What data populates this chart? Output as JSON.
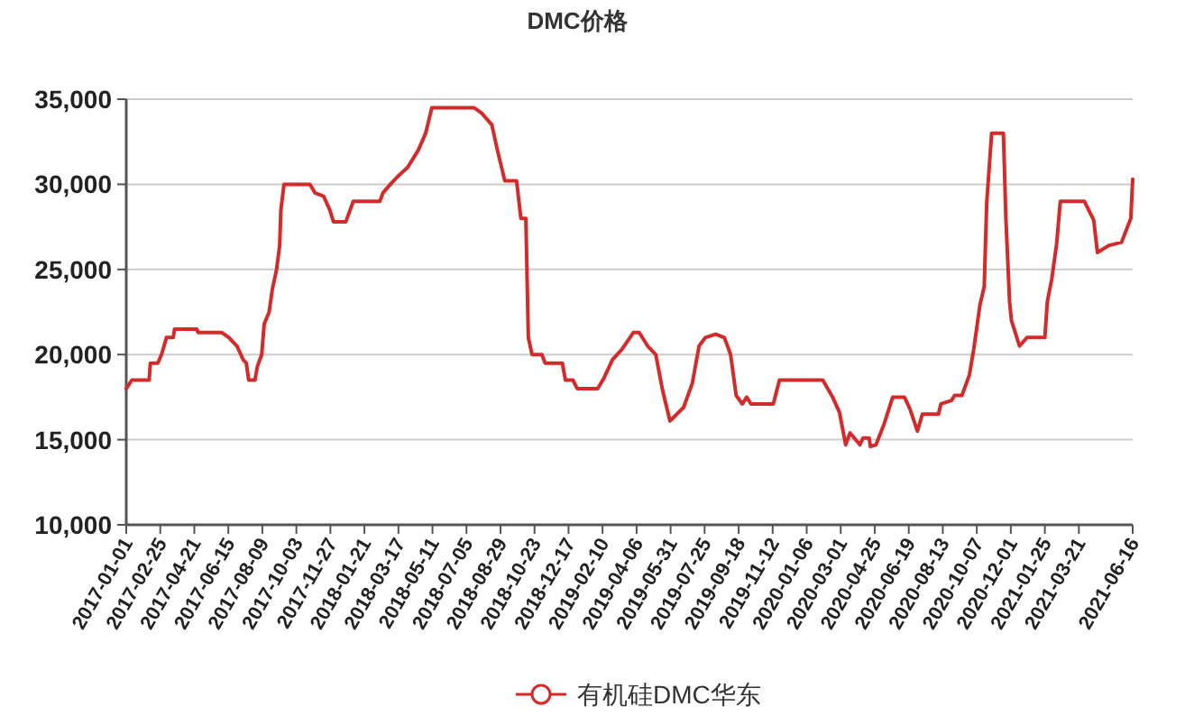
{
  "chart_data": {
    "type": "line",
    "title": "DMC价格",
    "x": [
      "2017-01-01",
      "2017-01-10",
      "2017-02-07",
      "2017-02-09",
      "2017-02-21",
      "2017-02-27",
      "2017-03-07",
      "2017-03-18",
      "2017-03-20",
      "2017-04-25",
      "2017-04-27",
      "2017-06-04",
      "2017-06-16",
      "2017-06-29",
      "2017-07-09",
      "2017-07-14",
      "2017-07-18",
      "2017-07-28",
      "2017-08-01",
      "2017-08-08",
      "2017-08-12",
      "2017-08-20",
      "2017-08-25",
      "2017-09-01",
      "2017-09-06",
      "2017-09-08",
      "2017-09-13",
      "2017-10-25",
      "2017-11-02",
      "2017-11-16",
      "2017-11-26",
      "2017-12-02",
      "2017-12-22",
      "2018-01-03",
      "2018-02-15",
      "2018-02-20",
      "2018-03-04",
      "2018-03-17",
      "2018-04-01",
      "2018-04-18",
      "2018-04-30",
      "2018-05-10",
      "2018-07-17",
      "2018-07-29",
      "2018-08-15",
      "2018-08-24",
      "2018-09-05",
      "2018-09-24",
      "2018-10-01",
      "2018-10-09",
      "2018-10-13",
      "2018-10-19",
      "2018-11-04",
      "2018-11-09",
      "2018-12-07",
      "2018-12-12",
      "2018-12-24",
      "2018-12-31",
      "2019-02-02",
      "2019-02-12",
      "2019-02-26",
      "2019-03-13",
      "2019-04-01",
      "2019-04-10",
      "2019-04-24",
      "2019-05-07",
      "2019-05-18",
      "2019-05-30",
      "2019-06-21",
      "2019-07-05",
      "2019-07-16",
      "2019-07-26",
      "2019-08-12",
      "2019-08-26",
      "2019-09-05",
      "2019-09-14",
      "2019-09-24",
      "2019-10-01",
      "2019-10-08",
      "2019-11-13",
      "2019-11-23",
      "2020-02-01",
      "2020-02-17",
      "2020-02-28",
      "2020-03-09",
      "2020-03-16",
      "2020-04-01",
      "2020-04-06",
      "2020-04-16",
      "2020-04-18",
      "2020-04-27",
      "2020-05-10",
      "2020-05-24",
      "2020-06-12",
      "2020-06-21",
      "2020-07-03",
      "2020-07-11",
      "2020-08-06",
      "2020-08-10",
      "2020-08-27",
      "2020-09-01",
      "2020-09-13",
      "2020-09-25",
      "2020-10-02",
      "2020-10-12",
      "2020-10-19",
      "2020-10-23",
      "2020-10-31",
      "2020-11-19",
      "2020-11-23",
      "2020-11-29",
      "2020-12-02",
      "2020-12-15",
      "2020-12-27",
      "2021-01-25",
      "2021-01-29",
      "2021-02-05",
      "2021-02-13",
      "2021-02-19",
      "2021-03-30",
      "2021-04-14",
      "2021-04-20",
      "2021-05-08",
      "2021-05-29",
      "2021-06-13",
      "2021-06-16"
    ],
    "series": [
      {
        "name": "有机硅DMC华东",
        "color": "#d42a2a",
        "values": [
          18000,
          18500,
          18500,
          19500,
          19500,
          20000,
          21000,
          21000,
          21500,
          21500,
          21300,
          21300,
          21000,
          20500,
          19700,
          19500,
          18500,
          18500,
          19300,
          20000,
          21800,
          22500,
          23800,
          25000,
          26400,
          28500,
          30000,
          30000,
          29500,
          29300,
          28500,
          27800,
          27800,
          29000,
          29000,
          29500,
          30000,
          30500,
          31000,
          32000,
          33000,
          34500,
          34500,
          34200,
          33500,
          32000,
          30200,
          30200,
          28000,
          28000,
          21000,
          20000,
          20000,
          19500,
          19500,
          18500,
          18500,
          18000,
          18000,
          18600,
          19700,
          20300,
          21300,
          21300,
          20500,
          20000,
          17900,
          16100,
          16900,
          18300,
          20500,
          21000,
          21200,
          21000,
          20000,
          17600,
          17100,
          17500,
          17100,
          17100,
          18500,
          18500,
          17500,
          16600,
          14700,
          15400,
          14700,
          15100,
          15100,
          14600,
          14700,
          15900,
          17500,
          17500,
          16800,
          15500,
          16500,
          16500,
          17100,
          17300,
          17600,
          17600,
          18800,
          20300,
          22900,
          24000,
          28900,
          33000,
          33000,
          28000,
          23100,
          22000,
          20500,
          21000,
          21000,
          23100,
          24400,
          26500,
          29000,
          29000,
          27900,
          26000,
          26400,
          26600,
          28000,
          30300
        ]
      }
    ],
    "xlim": [
      "2017-01-01",
      "2021-06-16"
    ],
    "xticks": [
      "2017-01-01",
      "2017-02-25",
      "2017-04-21",
      "2017-06-15",
      "2017-08-09",
      "2017-10-03",
      "2017-11-27",
      "2018-01-21",
      "2018-03-17",
      "2018-05-11",
      "2018-07-05",
      "2018-08-29",
      "2018-10-23",
      "2018-12-17",
      "2019-02-10",
      "2019-04-06",
      "2019-05-31",
      "2019-07-25",
      "2019-09-18",
      "2019-11-12",
      "2020-01-06",
      "2020-03-01",
      "2020-04-25",
      "2020-06-19",
      "2020-08-13",
      "2020-10-07",
      "2020-12-01",
      "2021-01-25",
      "2021-03-21",
      "2021-06-16"
    ],
    "ylim": [
      10000,
      35000
    ],
    "yticks": [
      {
        "value": 10000,
        "label": "10,000"
      },
      {
        "value": 15000,
        "label": "15,000"
      },
      {
        "value": 20000,
        "label": "20,000"
      },
      {
        "value": 25000,
        "label": "25,000"
      },
      {
        "value": 30000,
        "label": "30,000"
      },
      {
        "value": 35000,
        "label": "35,000"
      }
    ],
    "grid": "y",
    "legend": "bottom"
  }
}
